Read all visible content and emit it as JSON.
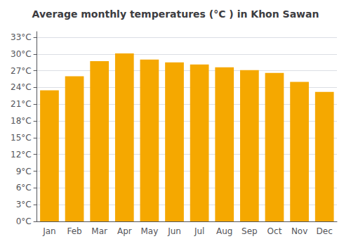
{
  "chart_data": {
    "type": "bar",
    "title": "Average monthly temperatures (°C ) in Khon Sawan",
    "categories": [
      "Jan",
      "Feb",
      "Mar",
      "Apr",
      "May",
      "Jun",
      "Jul",
      "Aug",
      "Sep",
      "Oct",
      "Nov",
      "Dec"
    ],
    "values": [
      23.5,
      26.0,
      28.7,
      30.1,
      29.0,
      28.5,
      28.1,
      27.6,
      27.1,
      26.6,
      25.0,
      23.2
    ],
    "color": "#F5A800",
    "ylim": [
      0,
      34
    ],
    "yticks": [
      {
        "value": 0,
        "label": "0°C"
      },
      {
        "value": 3,
        "label": "3°C"
      },
      {
        "value": 6,
        "label": "6°C"
      },
      {
        "value": 9,
        "label": "9°C"
      },
      {
        "value": 12,
        "label": "12°C"
      },
      {
        "value": 15,
        "label": "15°C"
      },
      {
        "value": 18,
        "label": "18°C"
      },
      {
        "value": 21,
        "label": "21°C"
      },
      {
        "value": 24,
        "label": "24°C"
      },
      {
        "value": 27,
        "label": "27°C"
      },
      {
        "value": 30,
        "label": "30°C"
      },
      {
        "value": 33,
        "label": "33°C"
      }
    ],
    "grid": true
  }
}
